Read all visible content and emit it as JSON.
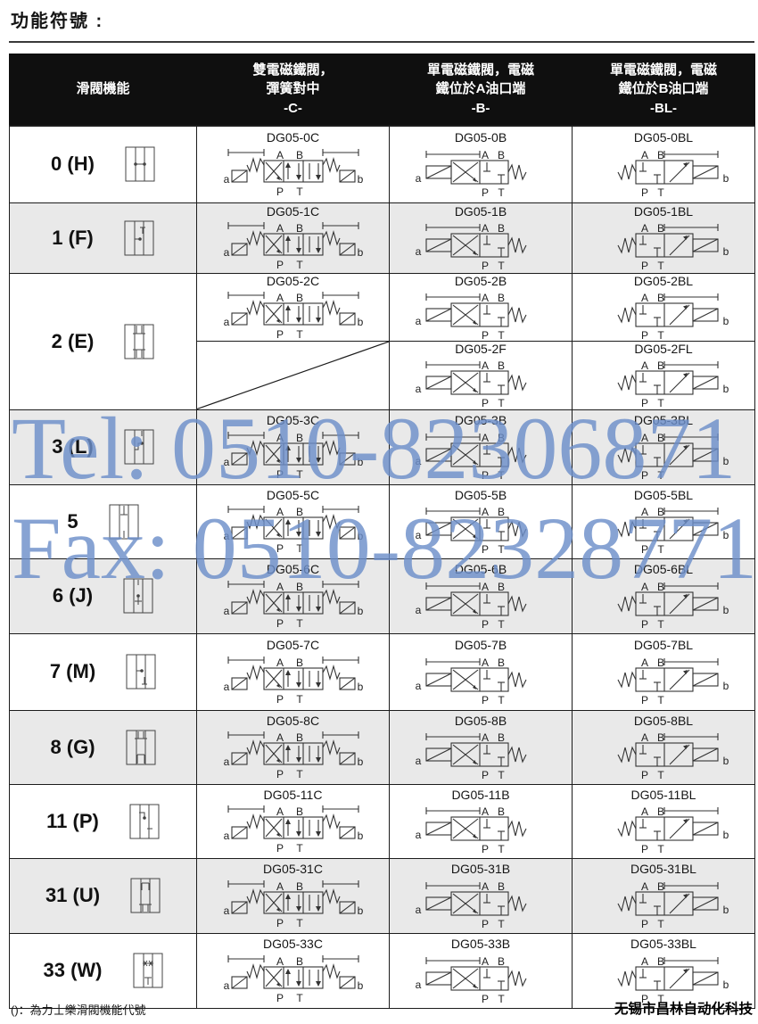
{
  "page_title": "功能符號 :",
  "table": {
    "headers": [
      {
        "label": "滑閥機能"
      },
      {
        "label": "雙電磁鐵閥，\n彈簧對中\n-C-"
      },
      {
        "label": "單電磁鐵閥，電磁\n鐵位於A油口端\n-B-"
      },
      {
        "label": "單電磁鐵閥，電磁\n鐵位於B油口端\n-BL-"
      }
    ],
    "port_labels": {
      "A": "A",
      "B": "B",
      "P": "P",
      "T": "T",
      "a": "a",
      "b": "b"
    },
    "rows": [
      {
        "code": "0 (H)",
        "spool_icon": "spool-symbol-0-h",
        "models": {
          "C": "DG05-0C",
          "B": "DG05-0B",
          "BL": "DG05-0BL"
        }
      },
      {
        "code": "1 (F)",
        "spool_icon": "spool-symbol-1-f",
        "models": {
          "C": "DG05-1C",
          "B": "DG05-1B",
          "BL": "DG05-1BL"
        }
      },
      {
        "code": "2 (E)",
        "spool_icon": "spool-symbol-2-e",
        "models": {
          "C": "DG05-2C",
          "B": "DG05-2B",
          "BL": "DG05-2BL"
        },
        "models2": {
          "B": "DG05-2F",
          "BL": "DG05-2FL"
        }
      },
      {
        "code": "3 (L)",
        "spool_icon": "spool-symbol-3-l",
        "models": {
          "C": "DG05-3C",
          "B": "DG05-3B",
          "BL": "DG05-3BL"
        }
      },
      {
        "code": "5",
        "spool_icon": "spool-symbol-5",
        "models": {
          "C": "DG05-5C",
          "B": "DG05-5B",
          "BL": "DG05-5BL"
        }
      },
      {
        "code": "6 (J)",
        "spool_icon": "spool-symbol-6-j",
        "models": {
          "C": "DG05-6C",
          "B": "DG05-6B",
          "BL": "DG05-6BL"
        }
      },
      {
        "code": "7 (M)",
        "spool_icon": "spool-symbol-7-m",
        "models": {
          "C": "DG05-7C",
          "B": "DG05-7B",
          "BL": "DG05-7BL"
        }
      },
      {
        "code": "8 (G)",
        "spool_icon": "spool-symbol-8-g",
        "models": {
          "C": "DG05-8C",
          "B": "DG05-8B",
          "BL": "DG05-8BL"
        }
      },
      {
        "code": "11 (P)",
        "spool_icon": "spool-symbol-11-p",
        "models": {
          "C": "DG05-11C",
          "B": "DG05-11B",
          "BL": "DG05-11BL"
        }
      },
      {
        "code": "31 (U)",
        "spool_icon": "spool-symbol-31-u",
        "models": {
          "C": "DG05-31C",
          "B": "DG05-31B",
          "BL": "DG05-31BL"
        }
      },
      {
        "code": "33 (W)",
        "spool_icon": "spool-symbol-33-w",
        "models": {
          "C": "DG05-33C",
          "B": "DG05-33B",
          "BL": "DG05-33BL"
        }
      }
    ]
  },
  "watermark": {
    "line1": "Tel: 0510-82306871",
    "line2": "Fax: 0510-82328771",
    "color": "#6d8fca"
  },
  "footer": {
    "left": "()：為力士樂滑閥機能代號",
    "right": "无锡市昌林自动化科技"
  }
}
